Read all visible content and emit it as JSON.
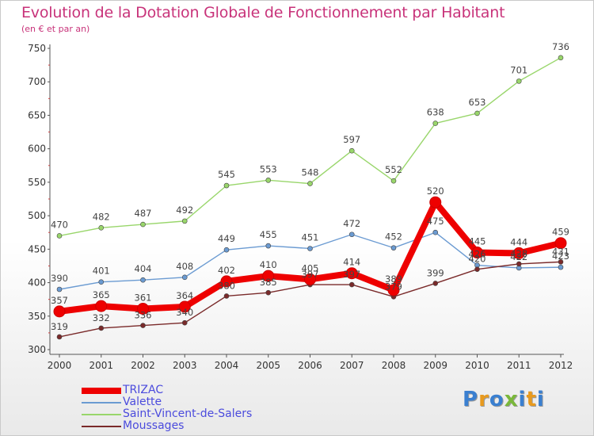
{
  "chart_data": {
    "type": "line",
    "title": "Evolution de la Dotation Globale de Fonctionnement par Habitant",
    "subtitle": "(en € et par an)",
    "xlabel": "",
    "ylabel": "",
    "x": [
      "2000",
      "2001",
      "2002",
      "2003",
      "2004",
      "2005",
      "2006",
      "2007",
      "2008",
      "2009",
      "2010",
      "2011",
      "2012"
    ],
    "ylim": [
      300,
      750
    ],
    "yticks": [
      300,
      350,
      400,
      450,
      500,
      550,
      600,
      650,
      700,
      750
    ],
    "grid": false,
    "legend_position": "bottom-left",
    "series": [
      {
        "name": "TRIZAC",
        "color": "#ee0000",
        "values": [
          357,
          365,
          361,
          364,
          402,
          410,
          405,
          414,
          389,
          520,
          445,
          444,
          459
        ]
      },
      {
        "name": "Valette",
        "color": "#6b9bd2",
        "values": [
          390,
          401,
          404,
          408,
          449,
          455,
          451,
          472,
          452,
          475,
          426,
          422,
          423
        ]
      },
      {
        "name": "Saint-Vincent-de-Salers",
        "color": "#99d66b",
        "values": [
          470,
          482,
          487,
          492,
          545,
          553,
          548,
          597,
          552,
          638,
          653,
          701,
          736
        ]
      },
      {
        "name": "Moussages",
        "color": "#7a2a2a",
        "values": [
          319,
          332,
          336,
          340,
          380,
          385,
          397,
          397,
          379,
          399,
          420,
          428,
          431
        ]
      }
    ]
  },
  "logo": {
    "text": "Proxiti",
    "colors": [
      "#3a7fd0",
      "#e89a1e",
      "#3a7fd0",
      "#7ab83a",
      "#3a7fd0",
      "#e89a1e",
      "#3a7fd0"
    ]
  }
}
